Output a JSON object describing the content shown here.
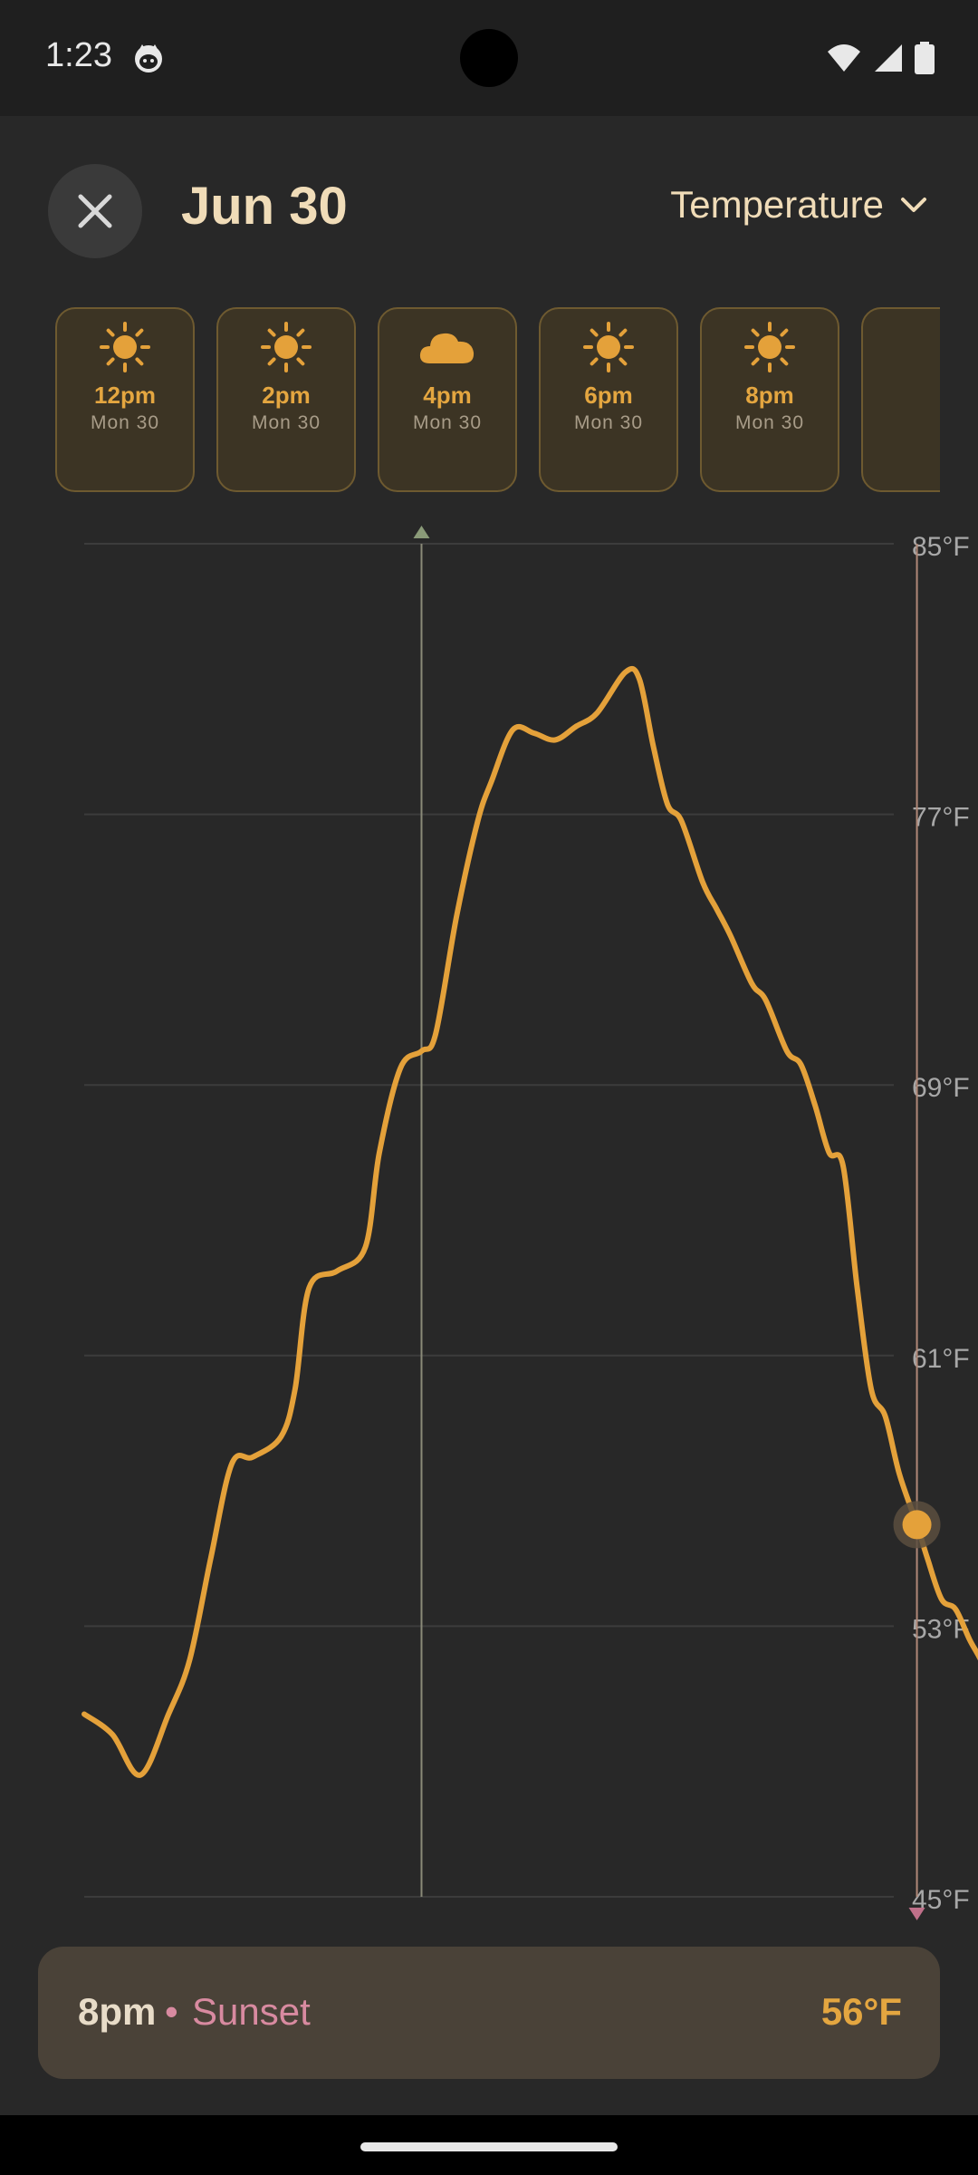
{
  "status_bar": {
    "time": "1:23"
  },
  "header": {
    "date": "Jun 30",
    "metric": "Temperature"
  },
  "hours": [
    {
      "time": "",
      "day": "",
      "icon": "sun-icon",
      "partial": "left"
    },
    {
      "time": "12pm",
      "day": "Mon 30",
      "icon": "sun-icon"
    },
    {
      "time": "2pm",
      "day": "Mon 30",
      "icon": "sun-icon"
    },
    {
      "time": "4pm",
      "day": "Mon 30",
      "icon": "cloud-icon"
    },
    {
      "time": "6pm",
      "day": "Mon 30",
      "icon": "sun-icon"
    },
    {
      "time": "8pm",
      "day": "Mon 30",
      "icon": "sun-icon"
    },
    {
      "time": "",
      "day": "",
      "icon": "sun-icon",
      "partial": "right"
    }
  ],
  "colors": {
    "accent": "#e4a13a",
    "sunrise_marker": "#8a9a78",
    "sunset_marker": "#c0708a",
    "grid": "#3c3c3c"
  },
  "chart_data": {
    "type": "line",
    "ylim": [
      45,
      85
    ],
    "y_ticks": [
      "85°F",
      "77°F",
      "69°F",
      "61°F",
      "53°F",
      "45°F"
    ],
    "x_hours_range": [
      10,
      23
    ],
    "series": [
      {
        "values": [
          {
            "x": 10.0,
            "y": 50.4
          },
          {
            "x": 10.4,
            "y": 49.8
          },
          {
            "x": 10.8,
            "y": 48.6
          },
          {
            "x": 11.2,
            "y": 50.4
          },
          {
            "x": 11.5,
            "y": 52.0
          },
          {
            "x": 11.8,
            "y": 55.0
          },
          {
            "x": 12.1,
            "y": 57.8
          },
          {
            "x": 12.4,
            "y": 58.0
          },
          {
            "x": 12.8,
            "y": 58.6
          },
          {
            "x": 13.0,
            "y": 60.0
          },
          {
            "x": 13.2,
            "y": 63.0
          },
          {
            "x": 13.6,
            "y": 63.5
          },
          {
            "x": 14.0,
            "y": 64.2
          },
          {
            "x": 14.2,
            "y": 67.0
          },
          {
            "x": 14.5,
            "y": 69.5
          },
          {
            "x": 14.8,
            "y": 70.0
          },
          {
            "x": 15.0,
            "y": 70.5
          },
          {
            "x": 15.3,
            "y": 74.0
          },
          {
            "x": 15.6,
            "y": 76.8
          },
          {
            "x": 15.8,
            "y": 78.0
          },
          {
            "x": 16.1,
            "y": 79.5
          },
          {
            "x": 16.4,
            "y": 79.4
          },
          {
            "x": 16.7,
            "y": 79.2
          },
          {
            "x": 17.0,
            "y": 79.6
          },
          {
            "x": 17.3,
            "y": 80.0
          },
          {
            "x": 17.7,
            "y": 81.2
          },
          {
            "x": 17.9,
            "y": 81.0
          },
          {
            "x": 18.1,
            "y": 79.0
          },
          {
            "x": 18.3,
            "y": 77.3
          },
          {
            "x": 18.5,
            "y": 76.8
          },
          {
            "x": 18.8,
            "y": 75.0
          },
          {
            "x": 19.0,
            "y": 74.2
          },
          {
            "x": 19.2,
            "y": 73.4
          },
          {
            "x": 19.5,
            "y": 72.0
          },
          {
            "x": 19.7,
            "y": 71.5
          },
          {
            "x": 20.0,
            "y": 70.0
          },
          {
            "x": 20.2,
            "y": 69.6
          },
          {
            "x": 20.4,
            "y": 68.4
          },
          {
            "x": 20.6,
            "y": 67.0
          },
          {
            "x": 20.8,
            "y": 66.6
          },
          {
            "x": 21.0,
            "y": 63.0
          },
          {
            "x": 21.2,
            "y": 60.0
          },
          {
            "x": 21.4,
            "y": 59.2
          },
          {
            "x": 21.6,
            "y": 57.5
          },
          {
            "x": 21.85,
            "y": 56.0
          },
          {
            "x": 22.0,
            "y": 55.0
          },
          {
            "x": 22.2,
            "y": 53.8
          },
          {
            "x": 22.4,
            "y": 53.5
          },
          {
            "x": 22.6,
            "y": 52.6
          },
          {
            "x": 22.8,
            "y": 51.8
          },
          {
            "x": 23.0,
            "y": 50.4
          },
          {
            "x": 23.1,
            "y": 50.0
          }
        ]
      }
    ],
    "sunrise_marker_hour": 14.8,
    "sunset_marker_hour": 21.85,
    "highlight": {
      "x": 21.85,
      "y": 56
    }
  },
  "selection": {
    "time": "8pm",
    "separator": "•",
    "event": "Sunset",
    "temp": "56°F"
  }
}
